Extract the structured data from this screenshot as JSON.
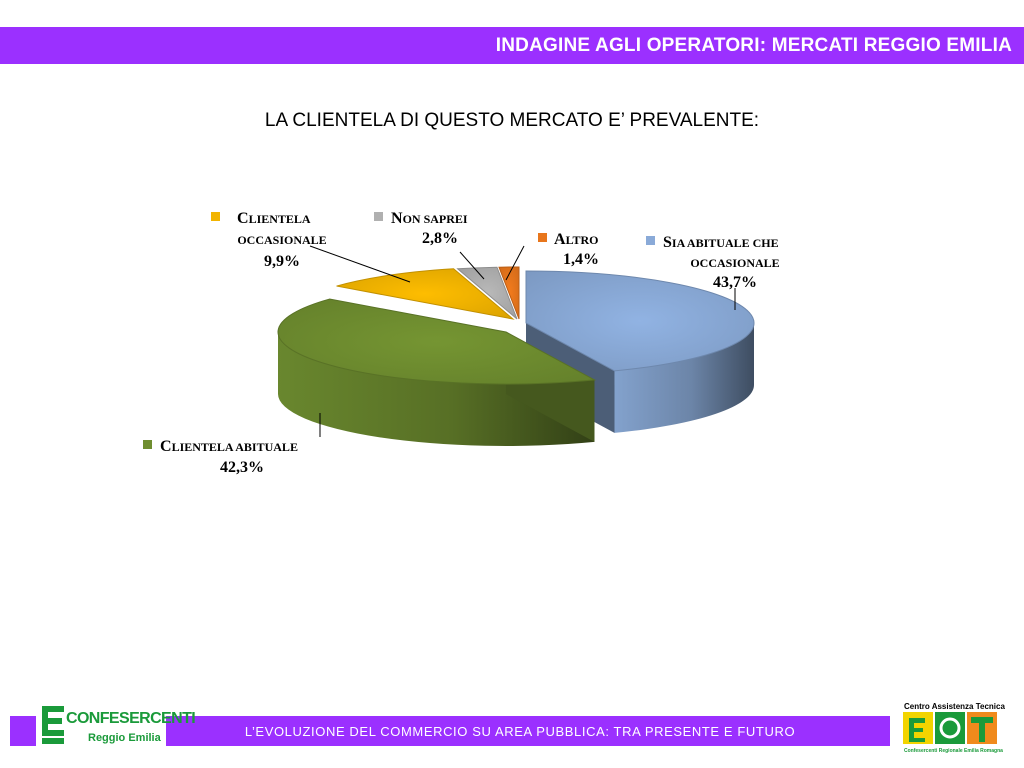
{
  "header": {
    "title": "INDAGINE AGLI OPERATORI: MERCATI REGGIO EMILIA"
  },
  "footer": {
    "text": "L’EVOLUZIONE DEL COMMERCIO SU AREA PUBBLICA: TRA PRESENTE E FUTURO",
    "logo_left_name": "CONFESERCENTI",
    "logo_left_sub": "Reggio Emilia",
    "logo_right_top": "Centro Assistenza Tecnica",
    "logo_right_bottom": "Confesercenti Regionale Emilia Romagna"
  },
  "chart_data": {
    "type": "pie",
    "title": "LA CLIENTELA DI QUESTO MERCATO E’ PREVALENTE:",
    "slices": [
      {
        "label": "Sia abituale che occasionale",
        "value": 43.7,
        "value_label": "43,7%",
        "color": "#8aaad8"
      },
      {
        "label": "Clientela abituale",
        "value": 42.3,
        "value_label": "42,3%",
        "color": "#6f8e30"
      },
      {
        "label": "Clientela occasionale",
        "value": 9.9,
        "value_label": "9,9%",
        "color": "#f2b400"
      },
      {
        "label": "Non saprei",
        "value": 2.8,
        "value_label": "2,8%",
        "color": "#b0b0b0"
      },
      {
        "label": "Altro",
        "value": 1.4,
        "value_label": "1,4%",
        "color": "#e8761c"
      }
    ]
  },
  "colors": {
    "accent": "#9b30ff",
    "brand_green": "#1a9a3a"
  }
}
